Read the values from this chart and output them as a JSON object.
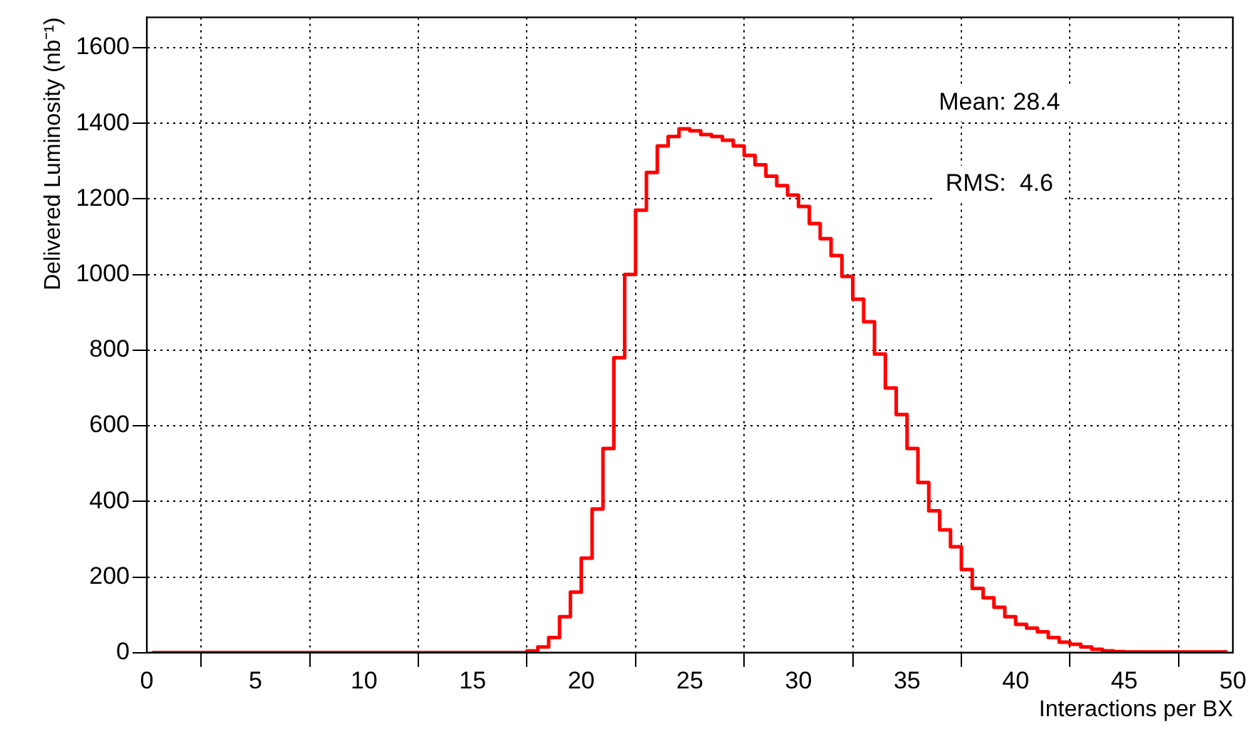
{
  "chart_data": {
    "type": "step",
    "xlabel": "Interactions per BX",
    "ylabel": "Delivered Luminosity (nb⁻¹)",
    "x": [
      0.25,
      0.75,
      1.25,
      1.75,
      2.25,
      2.75,
      3.25,
      3.75,
      4.25,
      4.75,
      5.25,
      5.75,
      6.25,
      6.75,
      7.25,
      7.75,
      8.25,
      8.75,
      9.25,
      9.75,
      10.25,
      10.75,
      11.25,
      11.75,
      12.25,
      12.75,
      13.25,
      13.75,
      14.25,
      14.75,
      15.25,
      15.75,
      16.25,
      16.75,
      17.25,
      17.75,
      18.25,
      18.75,
      19.25,
      19.75,
      20.25,
      20.75,
      21.25,
      21.75,
      22.25,
      22.75,
      23.25,
      23.75,
      24.25,
      24.75,
      25.25,
      25.75,
      26.25,
      26.75,
      27.25,
      27.75,
      28.25,
      28.75,
      29.25,
      29.75,
      30.25,
      30.75,
      31.25,
      31.75,
      32.25,
      32.75,
      33.25,
      33.75,
      34.25,
      34.75,
      35.25,
      35.75,
      36.25,
      36.75,
      37.25,
      37.75,
      38.25,
      38.75,
      39.25,
      39.75,
      40.25,
      40.75,
      41.25,
      41.75,
      42.25,
      42.75,
      43.25,
      43.75,
      44.25,
      44.75,
      45.25,
      45.75,
      46.25,
      46.75,
      47.25,
      47.75,
      48.25,
      48.75,
      49.25,
      49.75
    ],
    "values": [
      0,
      0,
      0,
      0,
      0,
      0,
      0,
      0,
      0,
      0,
      0,
      0,
      0,
      0,
      0,
      0,
      0,
      0,
      0,
      0,
      0,
      0,
      0,
      0,
      0,
      0,
      0,
      0,
      0,
      0,
      0,
      0,
      0,
      0,
      0,
      5,
      15,
      40,
      95,
      160,
      250,
      380,
      540,
      780,
      1000,
      1170,
      1270,
      1340,
      1365,
      1385,
      1380,
      1370,
      1365,
      1355,
      1340,
      1315,
      1290,
      1260,
      1235,
      1210,
      1180,
      1135,
      1095,
      1050,
      995,
      935,
      875,
      790,
      700,
      630,
      540,
      450,
      375,
      325,
      280,
      220,
      170,
      145,
      120,
      95,
      75,
      65,
      55,
      40,
      28,
      22,
      15,
      9,
      5,
      3,
      2,
      2,
      2,
      2,
      2,
      2,
      2,
      2,
      2,
      2
    ],
    "color": "#ff0000",
    "xlim": [
      0,
      50
    ],
    "xticks": [
      0,
      5,
      10,
      15,
      20,
      25,
      30,
      35,
      40,
      45,
      50
    ],
    "ylim": [
      0,
      1680
    ],
    "yticks": [
      0,
      200,
      400,
      600,
      800,
      1000,
      1200,
      1400,
      1600
    ],
    "grid": true,
    "legend": false,
    "annotations": [
      "Mean: 28.4",
      "RMS:  4.6"
    ]
  }
}
